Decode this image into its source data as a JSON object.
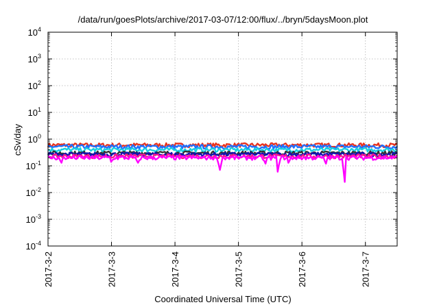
{
  "chart_data": {
    "type": "line",
    "title": "/data/run/goesPlots/archive/2017-03-07/12:00/flux/../bryn/5daysMoon.plot",
    "xlabel": "Coordinated Universal Time (UTC)",
    "ylabel": "cSv/day",
    "y_scale": "log",
    "ylim": [
      0.0001,
      10000
    ],
    "y_ticks": [
      {
        "base": "10",
        "exp": "-4",
        "value": 0.0001
      },
      {
        "base": "10",
        "exp": "-3",
        "value": 0.001
      },
      {
        "base": "10",
        "exp": "-2",
        "value": 0.01
      },
      {
        "base": "10",
        "exp": "-1",
        "value": 0.1
      },
      {
        "base": "10",
        "exp": "0",
        "value": 1
      },
      {
        "base": "10",
        "exp": "1",
        "value": 10
      },
      {
        "base": "10",
        "exp": "2",
        "value": 100
      },
      {
        "base": "10",
        "exp": "3",
        "value": 1000
      },
      {
        "base": "10",
        "exp": "4",
        "value": 10000
      }
    ],
    "x_range": [
      "2017-03-02T00:00",
      "2017-03-07T12:00"
    ],
    "x_ticks": [
      "2017-3-2",
      "2017-3-3",
      "2017-3-4",
      "2017-3-5",
      "2017-3-6",
      "2017-3-7"
    ],
    "grid": true,
    "legend": "none",
    "series": [
      {
        "color": "#e8331f",
        "level": 0.6,
        "dips": []
      },
      {
        "color": "#2070ff",
        "level": 0.52,
        "dips": []
      },
      {
        "color": "#19cfe0",
        "level": 0.4,
        "dips": []
      },
      {
        "color": "#333333",
        "level": 0.3,
        "dips": []
      },
      {
        "color": "#1414b0",
        "level": 0.27,
        "dips": []
      },
      {
        "color": "#ff1493",
        "level": 0.23,
        "dips": []
      },
      {
        "color": "#ff00ff",
        "level": 0.2,
        "dips": [
          {
            "t": "2017-03-02T05:00",
            "value": 0.13
          },
          {
            "t": "2017-03-03T00:00",
            "value": 0.14
          },
          {
            "t": "2017-03-03T10:00",
            "value": 0.13
          },
          {
            "t": "2017-03-04T17:00",
            "value": 0.07
          },
          {
            "t": "2017-03-05T10:00",
            "value": 0.12
          },
          {
            "t": "2017-03-05T15:00",
            "value": 0.06
          },
          {
            "t": "2017-03-05T19:00",
            "value": 0.13
          },
          {
            "t": "2017-03-06T09:00",
            "value": 0.12
          },
          {
            "t": "2017-03-06T16:00",
            "value": 0.025
          }
        ]
      }
    ]
  }
}
